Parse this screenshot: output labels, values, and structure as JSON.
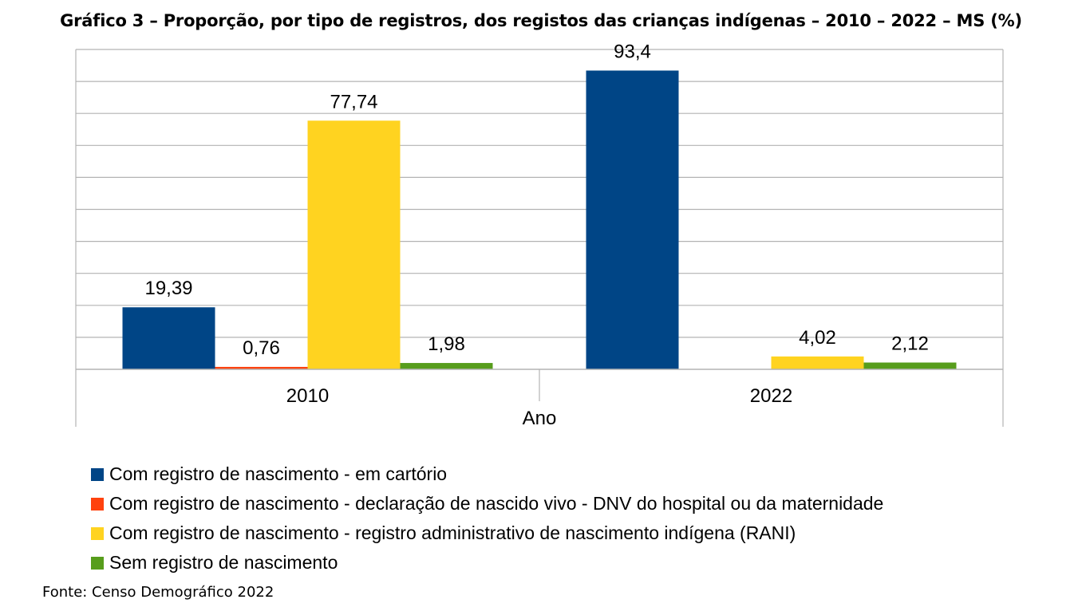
{
  "title": "Gráfico 3 – Proporção, por tipo de registros, dos registos das crianças indígenas – 2010 – 2022 – MS (%)",
  "source": "Fonte: Censo Demográfico 2022",
  "chart_data": {
    "type": "bar",
    "title": "Gráfico 3 – Proporção, por tipo de registros, dos registos das crianças indígenas – 2010 – 2022 – MS (%)",
    "xlabel": "Ano",
    "ylabel": "",
    "categories": [
      "2010",
      "2022"
    ],
    "ylim": [
      0,
      100
    ],
    "grid": true,
    "legend_position": "bottom",
    "series": [
      {
        "name": "Com registro de nascimento - em cartório",
        "color": "#004586",
        "values": [
          19.39,
          93.4
        ],
        "labels": [
          "19,39",
          "93,4"
        ]
      },
      {
        "name": "Com registro de nascimento - declaração de nascido vivo - DNV do hospital ou da maternidade",
        "color": "#ff420e",
        "values": [
          0.76,
          null
        ],
        "labels": [
          "0,76",
          ""
        ]
      },
      {
        "name": "Com registro de nascimento - registro administrativo de nascimento indígena (RANI)",
        "color": "#ffd320",
        "values": [
          77.74,
          4.02
        ],
        "labels": [
          "77,74",
          "4,02"
        ]
      },
      {
        "name": "Sem registro de nascimento",
        "color": "#579d1c",
        "values": [
          1.98,
          2.12
        ],
        "labels": [
          "1,98",
          "2,12"
        ]
      }
    ]
  }
}
